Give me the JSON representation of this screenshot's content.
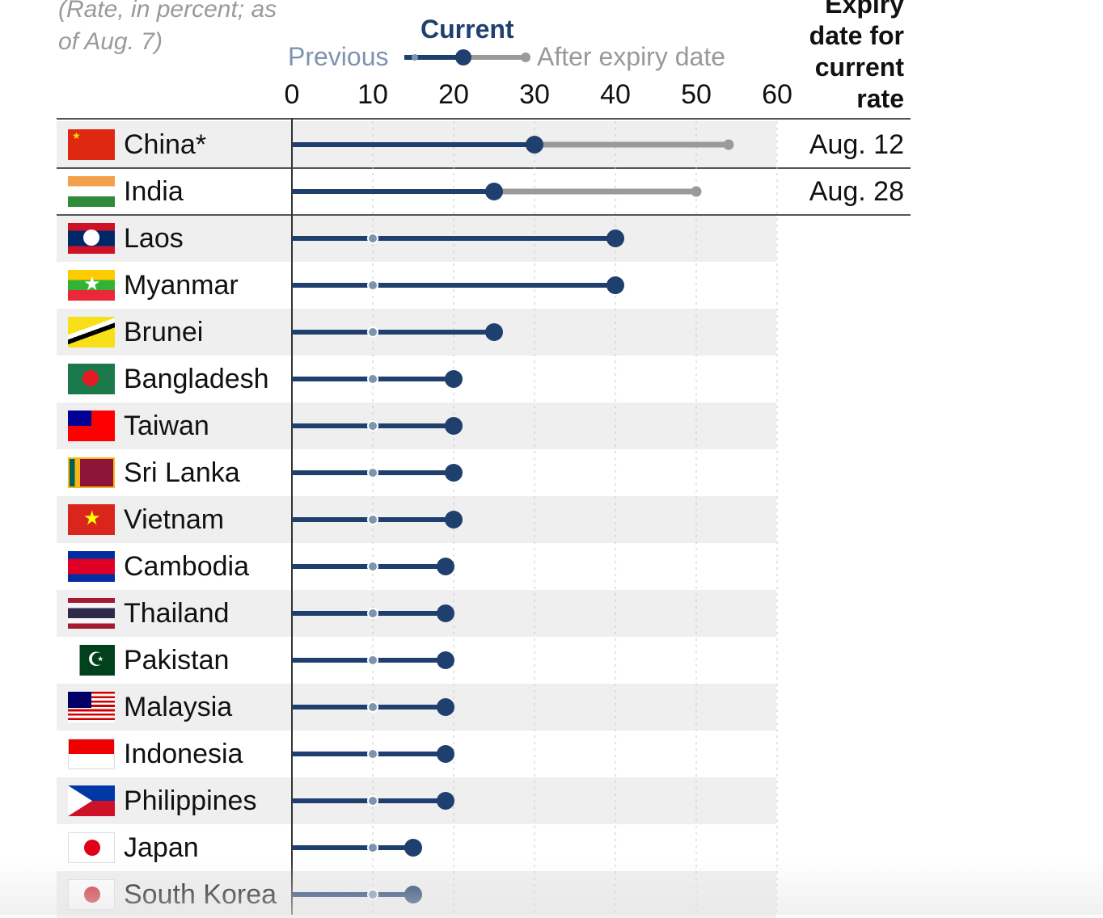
{
  "chart_data": {
    "type": "dot-range",
    "subtitle": "(Rate, in percent; as of Aug. 7)",
    "legend": {
      "current": "Current",
      "previous": "Previous",
      "after": "After expiry date"
    },
    "expiry_header": [
      "Expiry",
      "date for",
      "current",
      "rate"
    ],
    "xlim": [
      0,
      60
    ],
    "ticks": [
      "0",
      "10",
      "20",
      "30",
      "40",
      "50",
      "60"
    ],
    "tick_values": [
      0,
      10,
      20,
      30,
      40,
      50,
      60
    ],
    "colors": {
      "current": "#1f3f6e",
      "after": "#9a9a9a",
      "shade": "#efefef"
    },
    "rows": [
      {
        "country": "China*",
        "current": 30,
        "after": 54,
        "expiry": "Aug. 12",
        "flag": "china"
      },
      {
        "country": "India",
        "current": 25,
        "after": 50,
        "expiry": "Aug. 28",
        "flag": "india"
      },
      {
        "country": "Laos",
        "previous": 10,
        "current": 40,
        "flag": "laos"
      },
      {
        "country": "Myanmar",
        "previous": 10,
        "current": 40,
        "flag": "myanmar"
      },
      {
        "country": "Brunei",
        "previous": 10,
        "current": 25,
        "flag": "brunei"
      },
      {
        "country": "Bangladesh",
        "previous": 10,
        "current": 20,
        "flag": "bangladesh"
      },
      {
        "country": "Taiwan",
        "previous": 10,
        "current": 20,
        "flag": "taiwan"
      },
      {
        "country": "Sri Lanka",
        "previous": 10,
        "current": 20,
        "flag": "srilanka"
      },
      {
        "country": "Vietnam",
        "previous": 10,
        "current": 20,
        "flag": "vietnam"
      },
      {
        "country": "Cambodia",
        "previous": 10,
        "current": 19,
        "flag": "cambodia"
      },
      {
        "country": "Thailand",
        "previous": 10,
        "current": 19,
        "flag": "thailand"
      },
      {
        "country": "Pakistan",
        "previous": 10,
        "current": 19,
        "flag": "pakistan"
      },
      {
        "country": "Malaysia",
        "previous": 10,
        "current": 19,
        "flag": "malaysia"
      },
      {
        "country": "Indonesia",
        "previous": 10,
        "current": 19,
        "flag": "indonesia"
      },
      {
        "country": "Philippines",
        "previous": 10,
        "current": 19,
        "flag": "philippines"
      },
      {
        "country": "Japan",
        "previous": 10,
        "current": 15,
        "flag": "japan"
      },
      {
        "country": "South Korea",
        "previous": 10,
        "current": 15,
        "flag": "southkorea"
      }
    ]
  }
}
